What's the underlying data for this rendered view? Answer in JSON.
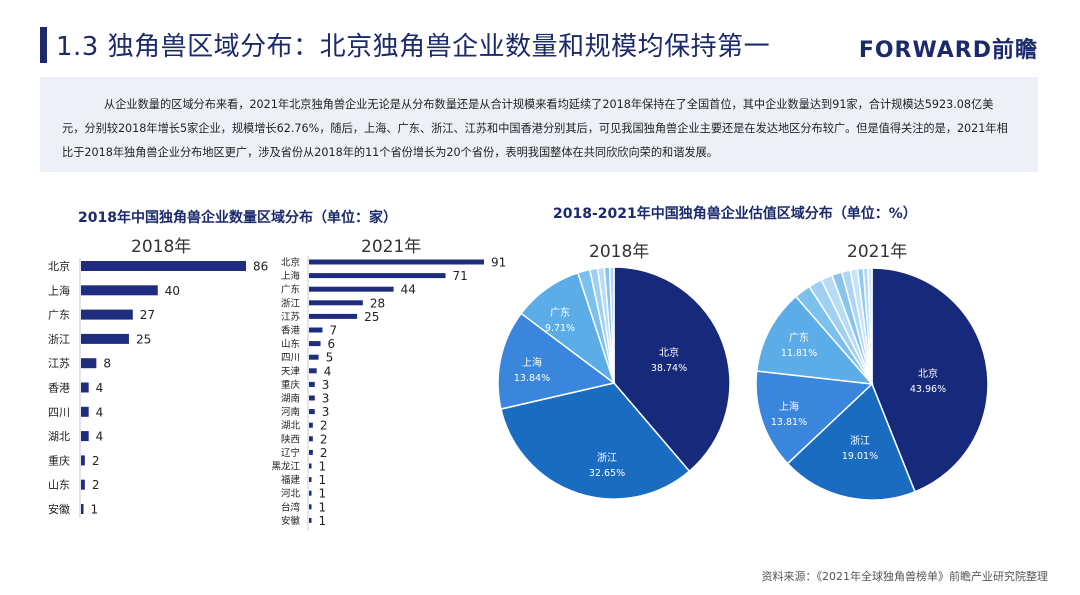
{
  "header": {
    "title": "1.3 独角兽区域分布：北京独角兽企业数量和规模均保持第一",
    "logo": "FORWARD前瞻"
  },
  "intro": {
    "text": "从企业数量的区域分布来看，2021年北京独角兽企业无论是从分布数量还是从合计规模来看均延续了2018年保持在了全国首位，其中企业数量达到91家，合计规模达5923.08亿美元，分别较2018年增长5家企业，规模增长62.76%，随后，上海、广东、浙江、江苏和中国香港分别其后，可见我国独角兽企业主要还是在发达地区分布较广。但是值得关注的是，2021年相比于2018年独角兽企业分布地区更广，涉及省份从2018年的11个省份增长为20个省份，表明我国整体在共同欣欣向荣的和谐发展。"
  },
  "colors": {
    "navy": "#1b2a6b",
    "bar": "#1f2d80",
    "pie_north": "#17297a",
    "pie_zhejiang": "#1a6cc0",
    "pie_shanghai": "#3a86dc",
    "pie_guangdong": "#5cace8",
    "pie_light": "#9fd0f2"
  },
  "source": "资料来源：《2021年全球独角兽榜单》前瞻产业研究院整理",
  "chart_data": [
    {
      "type": "bar",
      "title": "2018年中国独角兽企业数量区域分布（单位：家）",
      "subtitle": "2018年",
      "orientation": "horizontal",
      "categories": [
        "北京",
        "上海",
        "广东",
        "浙江",
        "江苏",
        "香港",
        "四川",
        "湖北",
        "重庆",
        "山东",
        "安徽"
      ],
      "values": [
        86,
        40,
        27,
        25,
        8,
        4,
        4,
        4,
        2,
        2,
        1
      ],
      "xlim": [
        0,
        91
      ]
    },
    {
      "type": "bar",
      "subtitle": "2021年",
      "orientation": "horizontal",
      "categories": [
        "北京",
        "上海",
        "广东",
        "浙江",
        "江苏",
        "香港",
        "山东",
        "四川",
        "天津",
        "重庆",
        "湖南",
        "河南",
        "湖北",
        "陕西",
        "辽宁",
        "黑龙江",
        "福建",
        "河北",
        "台湾",
        "安徽"
      ],
      "values": [
        91,
        71,
        44,
        28,
        25,
        7,
        6,
        5,
        4,
        3,
        3,
        3,
        2,
        2,
        2,
        1,
        1,
        1,
        1,
        1
      ],
      "xlim": [
        0,
        91
      ]
    },
    {
      "type": "pie",
      "title": "2018-2021年中国独角兽企业估值区域分布（单位：%）",
      "subtitle": "2018年",
      "slices": [
        {
          "label": "北京",
          "value": 38.74,
          "display": "38.74%"
        },
        {
          "label": "浙江",
          "value": 32.65,
          "display": "32.65%"
        },
        {
          "label": "上海",
          "value": 13.84,
          "display": "13.84%"
        },
        {
          "label": "广东",
          "value": 9.71,
          "display": "9.71%"
        },
        {
          "label": "",
          "value": 1.7
        },
        {
          "label": "",
          "value": 1.1
        },
        {
          "label": "",
          "value": 0.9
        },
        {
          "label": "",
          "value": 0.75
        },
        {
          "label": "",
          "value": 0.6
        }
      ]
    },
    {
      "type": "pie",
      "subtitle": "2021年",
      "slices": [
        {
          "label": "北京",
          "value": 43.96,
          "display": "43.96%"
        },
        {
          "label": "浙江",
          "value": 19.01,
          "display": "19.01%"
        },
        {
          "label": "上海",
          "value": 13.81,
          "display": "13.81%"
        },
        {
          "label": "广东",
          "value": 11.81,
          "display": "11.81%"
        },
        {
          "label": "",
          "value": 2.3
        },
        {
          "label": "",
          "value": 1.9
        },
        {
          "label": "",
          "value": 1.6
        },
        {
          "label": "",
          "value": 1.4
        },
        {
          "label": "",
          "value": 1.2
        },
        {
          "label": "",
          "value": 1.0
        },
        {
          "label": "",
          "value": 0.8
        },
        {
          "label": "",
          "value": 0.65
        },
        {
          "label": "",
          "value": 0.55
        }
      ]
    }
  ]
}
